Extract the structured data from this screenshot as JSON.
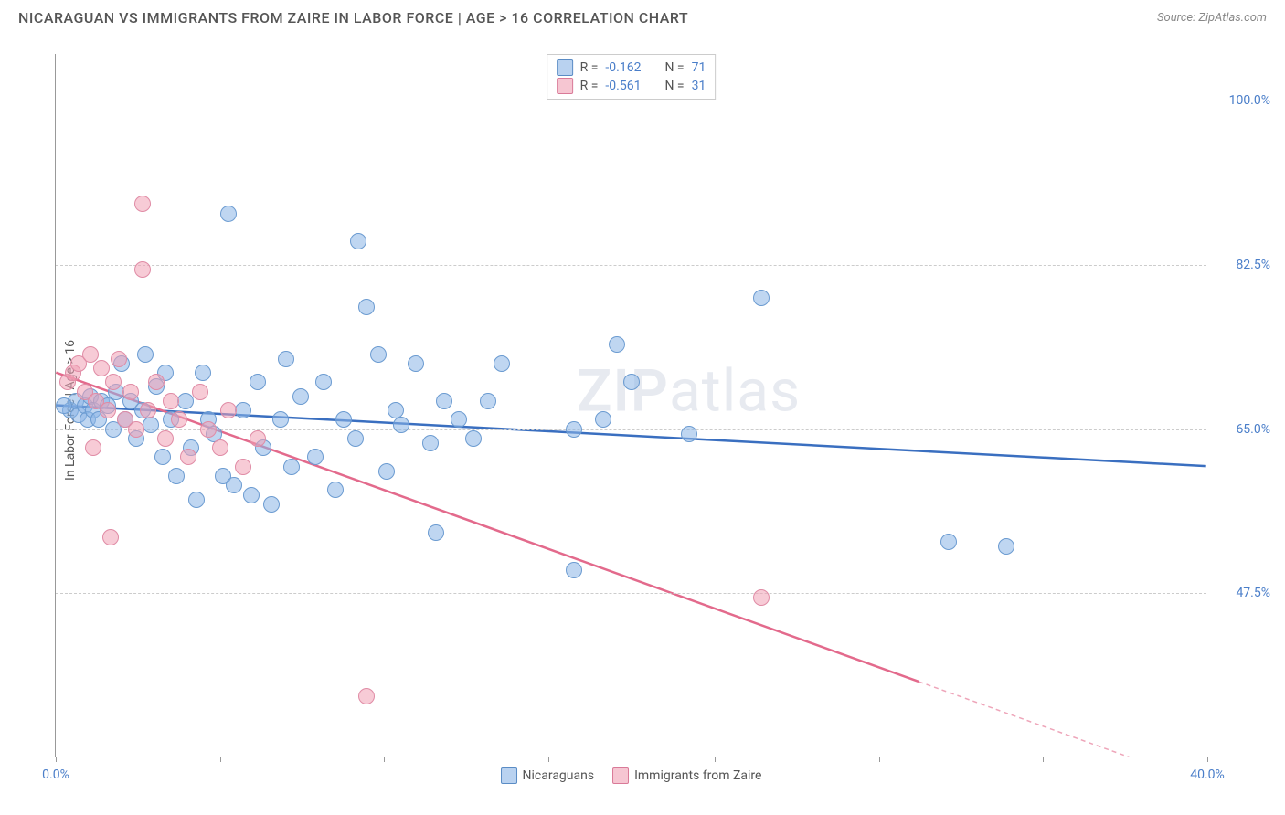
{
  "header": {
    "title": "NICARAGUAN VS IMMIGRANTS FROM ZAIRE IN LABOR FORCE | AGE > 16 CORRELATION CHART",
    "source": "Source: ZipAtlas.com"
  },
  "chart": {
    "type": "scatter",
    "y_axis_label": "In Labor Force | Age > 16",
    "xlim": [
      0,
      40
    ],
    "ylim": [
      30,
      105
    ],
    "x_ticks": [
      0,
      5.7,
      11.4,
      17.1,
      22.9,
      28.6,
      34.3,
      40
    ],
    "x_tick_labels": [
      "0.0%",
      "",
      "",
      "",
      "",
      "",
      "",
      "40.0%"
    ],
    "y_gridlines": [
      47.5,
      65.0,
      82.5,
      100.0
    ],
    "y_tick_labels": [
      "47.5%",
      "65.0%",
      "82.5%",
      "100.0%"
    ],
    "background_color": "#ffffff",
    "grid_color": "#cccccc",
    "axis_color": "#999999",
    "label_color": "#4a7ec9",
    "watermark": "ZIPatlas",
    "series": [
      {
        "name": "Nicaraguans",
        "fill_color": "rgba(138,180,230,0.55)",
        "stroke_color": "#6b9bd1",
        "R": "-0.162",
        "N": "71",
        "trend": {
          "x1": 0,
          "y1": 67.5,
          "x2": 40,
          "y2": 61.0,
          "color": "#3a6fc0",
          "width": 2.5
        },
        "points": [
          [
            0.5,
            67
          ],
          [
            0.7,
            68
          ],
          [
            0.8,
            66.5
          ],
          [
            1.0,
            67.5
          ],
          [
            1.1,
            66
          ],
          [
            1.2,
            68.5
          ],
          [
            1.3,
            67
          ],
          [
            1.5,
            66
          ],
          [
            1.6,
            68
          ],
          [
            1.8,
            67.5
          ],
          [
            2.0,
            65
          ],
          [
            2.1,
            69
          ],
          [
            2.3,
            72
          ],
          [
            2.4,
            66
          ],
          [
            2.6,
            68
          ],
          [
            2.8,
            64
          ],
          [
            3.0,
            67
          ],
          [
            3.1,
            73
          ],
          [
            3.3,
            65.5
          ],
          [
            3.5,
            69.5
          ],
          [
            3.7,
            62
          ],
          [
            3.8,
            71
          ],
          [
            4.0,
            66
          ],
          [
            4.2,
            60
          ],
          [
            4.5,
            68
          ],
          [
            4.7,
            63
          ],
          [
            4.9,
            57.5
          ],
          [
            5.1,
            71
          ],
          [
            5.3,
            66
          ],
          [
            5.5,
            64.5
          ],
          [
            5.8,
            60
          ],
          [
            6.0,
            88
          ],
          [
            6.2,
            59
          ],
          [
            6.5,
            67
          ],
          [
            6.8,
            58
          ],
          [
            7.0,
            70
          ],
          [
            7.2,
            63
          ],
          [
            7.5,
            57
          ],
          [
            7.8,
            66
          ],
          [
            8.0,
            72.5
          ],
          [
            8.2,
            61
          ],
          [
            8.5,
            68.5
          ],
          [
            9.0,
            62
          ],
          [
            9.3,
            70
          ],
          [
            9.7,
            58.5
          ],
          [
            10.0,
            66
          ],
          [
            10.4,
            64
          ],
          [
            10.5,
            85
          ],
          [
            10.8,
            78
          ],
          [
            11.2,
            73
          ],
          [
            11.5,
            60.5
          ],
          [
            11.8,
            67
          ],
          [
            12.0,
            65.5
          ],
          [
            12.5,
            72
          ],
          [
            13.0,
            63.5
          ],
          [
            13.2,
            54
          ],
          [
            13.5,
            68
          ],
          [
            14.0,
            66
          ],
          [
            14.5,
            64
          ],
          [
            15.0,
            68
          ],
          [
            15.5,
            72
          ],
          [
            18.0,
            65
          ],
          [
            18.0,
            50
          ],
          [
            19.5,
            74
          ],
          [
            19.0,
            66
          ],
          [
            20.0,
            70
          ],
          [
            22.0,
            64.5
          ],
          [
            24.5,
            79
          ],
          [
            31.0,
            53
          ],
          [
            33.0,
            52.5
          ],
          [
            0.3,
            67.5
          ]
        ]
      },
      {
        "name": "Immigrants from Zaire",
        "fill_color": "rgba(240,160,180,0.55)",
        "stroke_color": "#e08ba5",
        "R": "-0.561",
        "N": "31",
        "trend": {
          "x1": 0,
          "y1": 71.0,
          "x2": 30,
          "y2": 38.0,
          "color": "#e36a8c",
          "width": 2.5,
          "dash_after_x": 30,
          "x2_ext": 40,
          "y2_ext": 27.0
        },
        "points": [
          [
            0.4,
            70
          ],
          [
            0.6,
            71
          ],
          [
            0.8,
            72
          ],
          [
            1.0,
            69
          ],
          [
            1.2,
            73
          ],
          [
            1.4,
            68
          ],
          [
            1.6,
            71.5
          ],
          [
            1.8,
            67
          ],
          [
            2.0,
            70
          ],
          [
            2.2,
            72.5
          ],
          [
            2.4,
            66
          ],
          [
            2.6,
            69
          ],
          [
            2.8,
            65
          ],
          [
            3.0,
            89
          ],
          [
            3.0,
            82
          ],
          [
            3.2,
            67
          ],
          [
            3.5,
            70
          ],
          [
            3.8,
            64
          ],
          [
            4.0,
            68
          ],
          [
            4.3,
            66
          ],
          [
            4.6,
            62
          ],
          [
            5.0,
            69
          ],
          [
            5.3,
            65
          ],
          [
            5.7,
            63
          ],
          [
            6.0,
            67
          ],
          [
            6.5,
            61
          ],
          [
            7.0,
            64
          ],
          [
            1.3,
            63
          ],
          [
            1.9,
            53.5
          ],
          [
            10.8,
            36.5
          ],
          [
            24.5,
            47
          ]
        ]
      }
    ],
    "legend_r": [
      {
        "swatch": "blue",
        "R_label": "R =",
        "R_val": "-0.162",
        "N_label": "N =",
        "N_val": "71"
      },
      {
        "swatch": "pink",
        "R_label": "R =",
        "R_val": "-0.561",
        "N_label": "N =",
        "N_val": "31"
      }
    ],
    "legend_bottom": [
      {
        "swatch": "blue",
        "label": "Nicaraguans"
      },
      {
        "swatch": "pink",
        "label": "Immigrants from Zaire"
      }
    ]
  }
}
